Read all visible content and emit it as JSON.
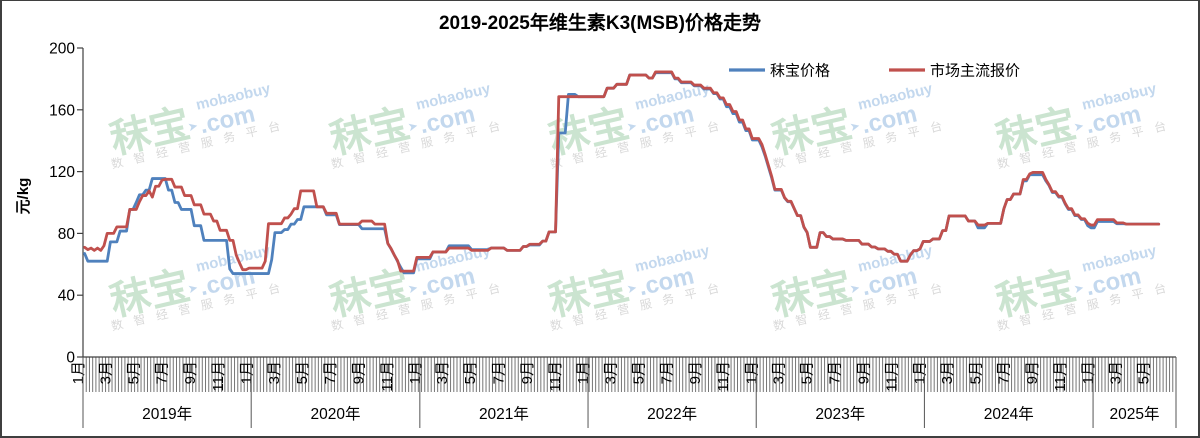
{
  "frame": {
    "border_color": "#3f3f3f",
    "background": "#ffffff"
  },
  "title": "2019-2025年维生素K3(MSB)价格走势",
  "legend": [
    {
      "label": "秣宝价格",
      "color": "#4F81BD"
    },
    {
      "label": "市场主流报价",
      "color": "#C0504D"
    }
  ],
  "watermark": {
    "top": "mobaobuy",
    "brand": "秣宝",
    "domain": ".com",
    "tagline": "数智经营服务平台",
    "brand_color": "#cbe4d0",
    "domain_color": "#c3d8ee",
    "tagline_color": "#d9d9d9"
  },
  "chart_data": {
    "type": "line",
    "title": "2019-2025年维生素K3(MSB)价格走势",
    "xlabel": "",
    "ylabel": "元/kg",
    "ylim": [
      0,
      200
    ],
    "y_ticks": [
      0,
      40,
      80,
      120,
      160,
      200
    ],
    "x_unit": "week",
    "total_weeks": 338.857,
    "month_ticks": [
      {
        "label": "1月",
        "week": 0.0
      },
      {
        "label": "3月",
        "week": 8.429
      },
      {
        "label": "5月",
        "week": 17.143
      },
      {
        "label": "7月",
        "week": 25.857
      },
      {
        "label": "9月",
        "week": 34.714
      },
      {
        "label": "11月",
        "week": 43.429
      },
      {
        "label": "1月",
        "week": 52.143
      },
      {
        "label": "3月",
        "week": 60.714
      },
      {
        "label": "5月",
        "week": 69.429
      },
      {
        "label": "7月",
        "week": 78.143
      },
      {
        "label": "9月",
        "week": 87.0
      },
      {
        "label": "11月",
        "week": 95.714
      },
      {
        "label": "1月",
        "week": 104.429
      },
      {
        "label": "3月",
        "week": 112.857
      },
      {
        "label": "5月",
        "week": 121.571
      },
      {
        "label": "7月",
        "week": 130.286
      },
      {
        "label": "9月",
        "week": 139.143
      },
      {
        "label": "11月",
        "week": 147.857
      },
      {
        "label": "1月",
        "week": 156.571
      },
      {
        "label": "3月",
        "week": 165.0
      },
      {
        "label": "5月",
        "week": 173.714
      },
      {
        "label": "7月",
        "week": 182.429
      },
      {
        "label": "9月",
        "week": 191.286
      },
      {
        "label": "11月",
        "week": 200.0
      },
      {
        "label": "1月",
        "week": 208.714
      },
      {
        "label": "3月",
        "week": 217.143
      },
      {
        "label": "5月",
        "week": 225.857
      },
      {
        "label": "7月",
        "week": 234.571
      },
      {
        "label": "9月",
        "week": 243.429
      },
      {
        "label": "11月",
        "week": 252.143
      },
      {
        "label": "1月",
        "week": 260.857
      },
      {
        "label": "3月",
        "week": 269.429
      },
      {
        "label": "5月",
        "week": 278.143
      },
      {
        "label": "7月",
        "week": 286.857
      },
      {
        "label": "9月",
        "week": 295.714
      },
      {
        "label": "11月",
        "week": 304.429
      },
      {
        "label": "1月",
        "week": 313.143
      },
      {
        "label": "3月",
        "week": 321.571
      },
      {
        "label": "5月",
        "week": 330.286
      }
    ],
    "year_sections": [
      {
        "label": "2019年",
        "start_week": 0.0,
        "end_week": 52.143
      },
      {
        "label": "2020年",
        "start_week": 52.143,
        "end_week": 104.429
      },
      {
        "label": "2021年",
        "start_week": 104.429,
        "end_week": 156.571
      },
      {
        "label": "2022年",
        "start_week": 156.571,
        "end_week": 208.714
      },
      {
        "label": "2023年",
        "start_week": 208.714,
        "end_week": 260.857
      },
      {
        "label": "2024年",
        "start_week": 260.857,
        "end_week": 313.143
      },
      {
        "label": "2025年",
        "start_week": 313.143,
        "end_week": 338.857
      }
    ],
    "legend_position": "top",
    "grid": false,
    "series": [
      {
        "name": "秣宝价格",
        "color": "#4F81BD",
        "values": [
          67,
          62,
          62,
          62,
          62,
          62,
          62,
          62,
          74.5,
          74.5,
          74.5,
          81.5,
          81.5,
          81.5,
          95.5,
          95.5,
          100,
          105,
          105,
          108,
          108,
          115.5,
          115.5,
          115.5,
          115.5,
          115.5,
          108,
          108,
          100,
          100,
          95.5,
          95.5,
          95.5,
          95.5,
          85,
          85,
          85,
          75.5,
          75.5,
          75.5,
          75.5,
          75.5,
          75.5,
          75.5,
          75.5,
          57,
          54,
          54,
          54,
          54,
          54,
          54,
          54,
          54,
          54,
          54,
          54,
          54,
          63,
          80.5,
          80.5,
          80.5,
          82.5,
          82.5,
          86,
          86,
          89,
          89,
          97.2,
          97.2,
          97.2,
          97.2,
          97.2,
          97.2,
          97.2,
          92,
          92,
          92,
          92,
          85.7,
          85.7,
          85.7,
          85.7,
          85.7,
          85.7,
          85.7,
          83,
          83,
          83,
          83,
          83,
          83,
          83,
          83,
          73.5,
          70,
          66,
          62,
          58,
          54.5,
          54.5,
          54.5,
          54.5,
          63.5,
          63.5,
          63.5,
          63.5,
          63.5,
          68,
          68,
          68,
          68,
          68,
          72,
          72,
          72,
          72,
          72,
          72,
          72,
          69.5,
          69.5,
          69.5,
          69.5,
          69.5,
          69.5,
          70.5,
          70.5,
          70.5,
          70.5,
          70.5,
          69,
          69,
          69,
          69,
          69,
          71.5,
          71.5,
          72.5,
          72.5,
          72.5,
          72.5,
          75,
          75,
          81,
          81,
          81,
          145,
          145,
          145,
          170,
          170,
          170,
          168.5,
          168.5,
          168.5,
          168.5,
          168.5,
          168.5,
          168.5,
          168.5,
          168.5,
          174,
          174,
          174,
          176.5,
          176.5,
          176.5,
          176.5,
          182.5,
          182.5,
          182.5,
          182.5,
          182.5,
          182.5,
          180.5,
          180.5,
          184,
          184,
          184,
          184,
          184,
          184,
          180,
          180,
          177.5,
          177.5,
          177.5,
          177.5,
          175.5,
          175.5,
          175.5,
          173.5,
          173.5,
          173.5,
          170.5,
          170.5,
          167,
          167,
          162,
          162,
          157.5,
          157.5,
          152,
          152,
          146.5,
          146.5,
          140.5,
          140.5,
          140.5,
          136,
          130,
          123,
          116,
          108,
          108,
          108,
          103,
          100.5,
          100.5,
          96,
          91.5,
          91.5,
          84,
          80.5,
          71,
          71,
          71,
          80.5,
          80.5,
          78,
          78,
          76.3,
          76.3,
          76.3,
          76.3,
          75.5,
          75.5,
          75.5,
          75.5,
          75.5,
          73,
          73,
          73,
          71.2,
          71.2,
          70,
          70,
          70,
          68.4,
          68.4,
          66.5,
          66.5,
          62,
          62,
          62,
          66,
          68.8,
          68.8,
          70,
          74.8,
          74.8,
          74.8,
          76.4,
          76.4,
          76.4,
          81.8,
          81.8,
          91.3,
          91.3,
          91.3,
          91.3,
          91.3,
          91.3,
          88,
          88,
          88,
          83.6,
          83.6,
          83.6,
          86.5,
          86.5,
          86.5,
          86.5,
          86.5,
          96,
          101.9,
          101.9,
          105.5,
          105.5,
          105.5,
          114,
          114,
          118,
          118,
          118,
          118,
          118,
          114,
          111,
          106.5,
          106.5,
          103.5,
          103.5,
          99,
          95.5,
          95.5,
          91.5,
          91.5,
          89,
          89,
          85,
          83.6,
          83.6,
          87.7,
          87.7,
          87.7,
          87.7,
          87.7,
          87.7,
          86.3,
          86.3,
          86.3,
          86,
          86,
          86,
          86,
          86,
          86,
          86,
          86,
          86,
          86,
          86
        ]
      },
      {
        "name": "市场主流报价",
        "color": "#C0504D",
        "values": [
          71,
          69.5,
          70.5,
          69,
          70.5,
          69,
          72,
          80,
          80,
          80,
          84.2,
          84.2,
          84.2,
          84.2,
          95.5,
          95.5,
          95.5,
          100.5,
          104.5,
          104.5,
          107.5,
          103.5,
          110.5,
          110.5,
          114.5,
          115,
          115,
          115,
          110,
          110,
          110,
          104.5,
          104.5,
          104.5,
          98.5,
          98.5,
          98.5,
          92.5,
          92.5,
          92.5,
          88,
          88,
          82,
          82,
          82,
          75.5,
          75.5,
          66,
          61,
          56.5,
          56.5,
          57.5,
          57.5,
          57.5,
          57.5,
          57.5,
          62,
          86.3,
          86.3,
          86.3,
          86.3,
          86.3,
          90,
          90,
          92.5,
          96,
          96,
          107.5,
          107.5,
          107.5,
          107.5,
          107.5,
          97.2,
          97.2,
          97.2,
          93,
          93,
          93,
          93,
          86,
          86,
          86,
          86,
          86,
          86,
          86,
          88,
          88,
          88,
          88,
          86,
          86,
          86,
          86,
          73.5,
          70.2,
          66,
          62.4,
          55.6,
          55.6,
          55.6,
          55.6,
          55.6,
          64.5,
          64.5,
          64.5,
          64.5,
          64.5,
          68,
          68,
          68,
          68,
          68,
          70.5,
          70.5,
          70.5,
          70.5,
          70.5,
          70.5,
          70.5,
          69,
          69,
          69,
          69,
          69,
          69,
          70.5,
          70.5,
          70.5,
          70.5,
          70.5,
          69,
          69,
          69,
          69,
          69,
          71.5,
          71.5,
          73,
          73,
          73,
          73,
          75,
          75,
          81,
          81,
          81,
          168.5,
          168.5,
          168.5,
          168.5,
          168.5,
          168.5,
          168.5,
          168.5,
          168.5,
          168.5,
          168.5,
          168.5,
          168.5,
          168.5,
          168.5,
          174,
          174,
          174,
          176.5,
          176.5,
          176.5,
          176.5,
          182.5,
          182.5,
          182.5,
          182.5,
          182.5,
          182.5,
          180.5,
          180.5,
          184.5,
          184.5,
          184.5,
          184.5,
          184.5,
          184.5,
          180.5,
          180.5,
          178,
          178,
          178,
          178,
          176,
          176,
          176,
          174,
          174,
          174,
          171,
          171,
          167.7,
          167.7,
          163.4,
          163.4,
          158.9,
          158.9,
          153.4,
          153.4,
          147.6,
          147.6,
          141.4,
          141.4,
          141.4,
          137.5,
          131,
          124,
          117,
          108.5,
          108.5,
          108.5,
          103.2,
          100.8,
          100.8,
          96.1,
          91.5,
          91.5,
          84.2,
          80.7,
          71,
          71,
          71,
          80.5,
          80.5,
          77.9,
          77.9,
          76.4,
          76.4,
          76.4,
          76.4,
          75.5,
          75.5,
          75.5,
          75.5,
          75.5,
          73.1,
          73.1,
          73.1,
          71.2,
          71.2,
          70,
          70,
          70,
          68.4,
          68.4,
          66.5,
          66.5,
          62,
          62,
          62,
          66,
          68.8,
          68.8,
          70,
          74.8,
          74.8,
          74.8,
          76.4,
          76.4,
          76.4,
          81.8,
          81.8,
          91.3,
          91.3,
          91.3,
          91.3,
          91.3,
          91.3,
          88,
          88,
          88,
          85.4,
          85.4,
          85.4,
          86.5,
          86.5,
          86.5,
          86.5,
          86.5,
          96,
          101.9,
          101.9,
          105.5,
          105.5,
          105.5,
          114.9,
          114.9,
          118.5,
          119.5,
          119.5,
          119.5,
          119.5,
          114.9,
          111.4,
          107,
          107,
          104,
          104,
          99.5,
          96,
          96,
          92,
          92,
          89.5,
          89.5,
          86.6,
          85.4,
          85.4,
          88.9,
          88.9,
          88.9,
          88.9,
          88.9,
          88.9,
          86.8,
          86.8,
          86.8,
          86,
          86,
          86,
          86,
          86,
          86,
          86,
          86,
          86,
          86,
          86
        ]
      }
    ]
  }
}
